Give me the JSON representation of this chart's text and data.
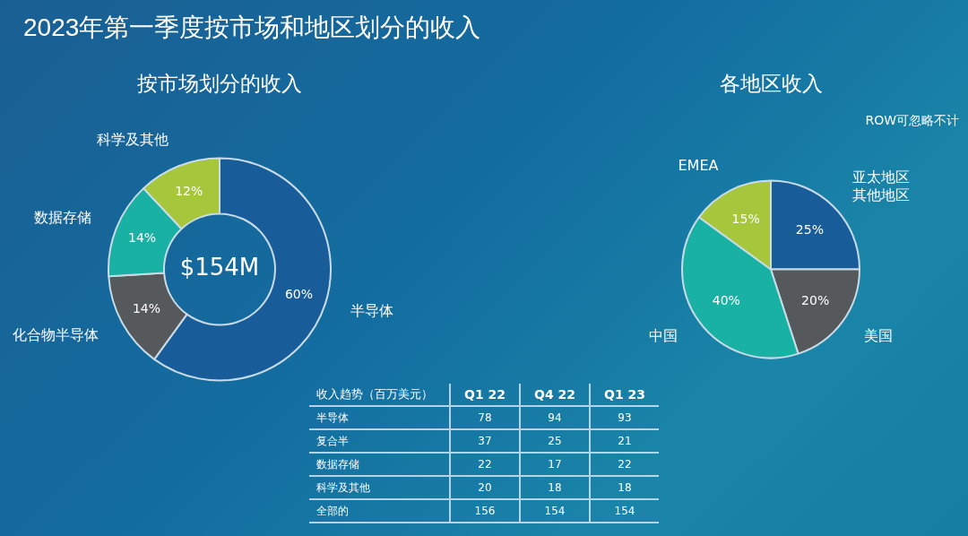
{
  "chart_data": [
    {
      "type": "donut",
      "title": "2023年第一季度按市场和地区划分的收入",
      "subtitle": "按市场划分的收入",
      "categories": [
        "半导体",
        "化合物半导体",
        "数据存储",
        "科学及其他"
      ],
      "values": [
        60,
        14,
        14,
        12
      ],
      "value_labels": [
        "60%",
        "14%",
        "14%",
        "12%"
      ],
      "colors": [
        "#185d99",
        "#56595c",
        "#19b1a4",
        "#a6c63c"
      ],
      "annotations": [
        "$154M"
      ]
    },
    {
      "type": "pie",
      "title": "各地区收入",
      "categories": [
        "亚太地区其他地区",
        "美国",
        "中国",
        "EMEA"
      ],
      "values": [
        25,
        20,
        40,
        15
      ],
      "value_labels": [
        "25%",
        "20%",
        "40%",
        "15%"
      ],
      "colors": [
        "#185d99",
        "#56595c",
        "#19b1a4",
        "#a6c63c"
      ],
      "annotations": [
        "ROW可忽略不计"
      ]
    },
    {
      "type": "other",
      "title": "收入趋势（百万美元）",
      "categories": [
        "Q1 22",
        "Q4 22",
        "Q1 23"
      ],
      "data_labels": true,
      "series": [
        {
          "name": "半导体",
          "values": [
            78,
            94,
            93
          ]
        },
        {
          "name": "复合半",
          "values": [
            37,
            25,
            21
          ]
        },
        {
          "name": "数据存储",
          "values": [
            22,
            17,
            22
          ]
        },
        {
          "name": "科学及其他",
          "values": [
            20,
            18,
            18
          ]
        },
        {
          "name": "全部的",
          "values": [
            156,
            154,
            154
          ]
        }
      ]
    }
  ]
}
